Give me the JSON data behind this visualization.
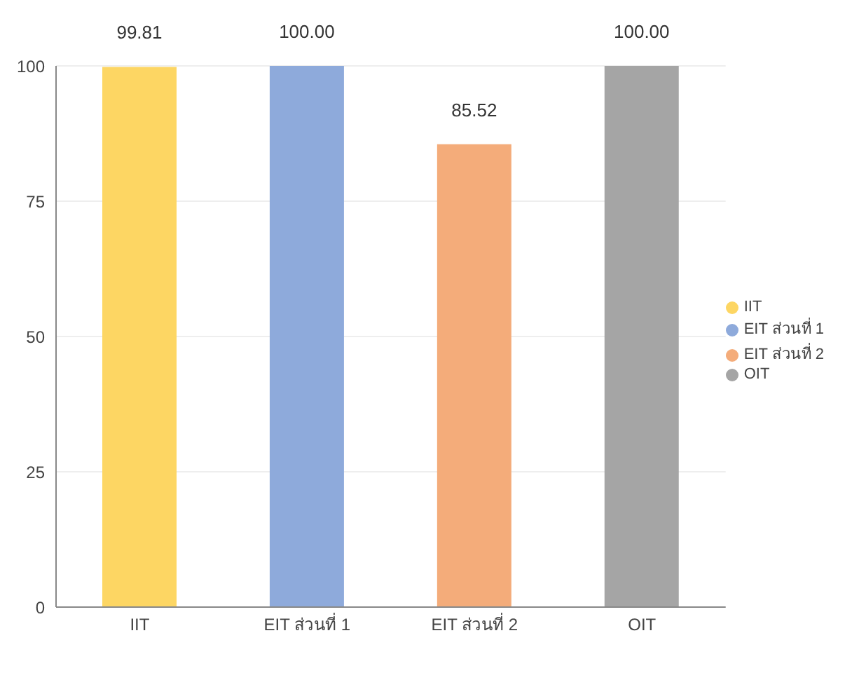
{
  "chart_data": {
    "type": "bar",
    "categories": [
      "IIT",
      "EIT ส่วนที่ 1",
      "EIT ส่วนที่ 2",
      "OIT"
    ],
    "series": [
      {
        "name": "IIT",
        "color": "#fdd663",
        "values": [
          99.81,
          null,
          null,
          null
        ],
        "value_labels": [
          "99.81",
          null,
          null,
          null
        ]
      },
      {
        "name": "EIT ส่วนที่ 1",
        "color": "#8eaadb",
        "values": [
          null,
          100.0,
          null,
          null
        ],
        "value_labels": [
          null,
          "100.00",
          null,
          null
        ]
      },
      {
        "name": "EIT ส่วนที่ 2",
        "color": "#f4ac7a",
        "values": [
          null,
          null,
          85.52,
          null
        ],
        "value_labels": [
          null,
          null,
          "85.52",
          null
        ]
      },
      {
        "name": "OIT",
        "color": "#a5a5a5",
        "values": [
          null,
          null,
          null,
          100.0
        ],
        "value_labels": [
          null,
          null,
          null,
          "100.00"
        ]
      }
    ],
    "ylim": [
      0,
      100
    ],
    "yticks": [
      0,
      25,
      50,
      75,
      100
    ],
    "grid": "y",
    "legend": "right"
  }
}
